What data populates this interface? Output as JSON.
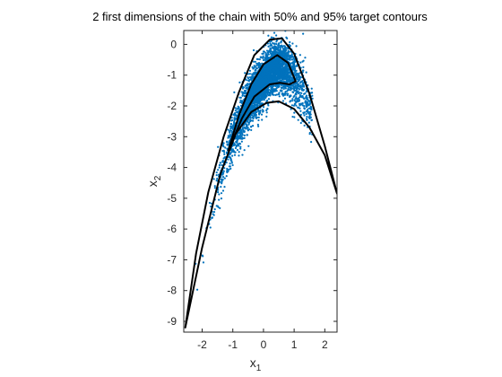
{
  "chart_data": {
    "type": "scatter",
    "title": "2 first dimensions of the chain with 50% and 95% target contours",
    "xlabel_base": "x",
    "xlabel_sub": "1",
    "ylabel_base": "x",
    "ylabel_sub": "2",
    "xlim": [
      -2.6,
      2.4
    ],
    "ylim": [
      -9.35,
      0.45
    ],
    "xticks": [
      -2,
      -1,
      0,
      1,
      2
    ],
    "xtick_labels": [
      "-2",
      "-1",
      "0",
      "1",
      "2"
    ],
    "yticks": [
      0,
      -1,
      -2,
      -3,
      -4,
      -5,
      -6,
      -7,
      -8,
      -9
    ],
    "ytick_labels": [
      "0",
      "-1",
      "-2",
      "-3",
      "-4",
      "-5",
      "-6",
      "-7",
      "-8",
      "-9"
    ],
    "grid": false,
    "colors": {
      "points": "#0072BD",
      "contours": "#000000",
      "axes": "#262626"
    },
    "points": {
      "description": "MCMC chain samples forming a banana-shaped cloud",
      "count": 4000,
      "ridge": [
        [
          -2.55,
          -9.1
        ],
        [
          -2.0,
          -6.6
        ],
        [
          -1.5,
          -4.6
        ],
        [
          -1.0,
          -3.0
        ],
        [
          -0.5,
          -1.9
        ],
        [
          0.0,
          -1.15
        ],
        [
          0.4,
          -0.7
        ],
        [
          0.8,
          -0.85
        ],
        [
          1.2,
          -1.4
        ],
        [
          1.5,
          -2.1
        ]
      ]
    },
    "contours": [
      {
        "level": "50%",
        "outer": [
          [
            -1.15,
            -3.45
          ],
          [
            -0.8,
            -2.3
          ],
          [
            -0.4,
            -1.3
          ],
          [
            0.0,
            -0.65
          ],
          [
            0.45,
            -0.35
          ],
          [
            0.8,
            -0.6
          ],
          [
            1.05,
            -1.2
          ]
        ],
        "inner": [
          [
            -1.15,
            -3.45
          ],
          [
            -0.7,
            -2.4
          ],
          [
            -0.3,
            -1.7
          ],
          [
            0.2,
            -1.3
          ],
          [
            0.55,
            -1.25
          ],
          [
            0.85,
            -1.3
          ],
          [
            1.05,
            -1.2
          ]
        ]
      },
      {
        "level": "95%",
        "outer": [
          [
            -2.55,
            -9.2
          ],
          [
            -2.2,
            -6.8
          ],
          [
            -1.8,
            -4.8
          ],
          [
            -1.3,
            -3.0
          ],
          [
            -0.8,
            -1.55
          ],
          [
            -0.3,
            -0.35
          ],
          [
            0.2,
            0.15
          ],
          [
            0.6,
            0.2
          ],
          [
            1.0,
            -0.3
          ],
          [
            1.5,
            -1.6
          ],
          [
            2.0,
            -3.3
          ],
          [
            2.4,
            -4.85
          ]
        ],
        "inner": [
          [
            -2.55,
            -9.2
          ],
          [
            -2.0,
            -6.6
          ],
          [
            -1.4,
            -4.2
          ],
          [
            -0.9,
            -2.9
          ],
          [
            -0.4,
            -2.2
          ],
          [
            0.1,
            -1.9
          ],
          [
            0.5,
            -1.85
          ],
          [
            1.0,
            -2.1
          ],
          [
            1.5,
            -2.7
          ],
          [
            2.0,
            -3.6
          ],
          [
            2.4,
            -4.85
          ]
        ]
      }
    ]
  }
}
